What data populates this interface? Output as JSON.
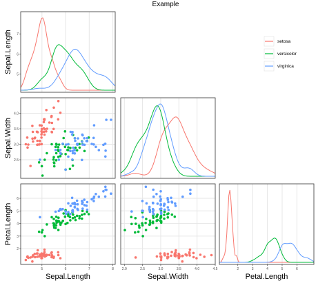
{
  "title": "Example",
  "colors": {
    "setosa": "#F8766D",
    "versicolor": "#00BA38",
    "virginica": "#619CFF",
    "panel_border": "#333333",
    "grid": "#e6e6e6"
  },
  "legend": {
    "placement": "right",
    "entries": [
      "setosa",
      "versicolor",
      "virginica"
    ]
  },
  "column_labels": [
    "Sepal.Length",
    "Sepal.Width",
    "Petal.Length"
  ],
  "row_labels": [
    "Sepal.Length",
    "Sepal.Width",
    "Petal.Length"
  ],
  "chart_data": {
    "type": "scatter",
    "title": "Example",
    "grid": true,
    "variables": [
      "Sepal.Length",
      "Sepal.Width",
      "Petal.Length"
    ],
    "axes": {
      "Sepal.Length": {
        "ylim": [
          4.3,
          7.9
        ],
        "ticks": [
          "5",
          "6",
          "7",
          "8"
        ]
      },
      "Sepal.Width": {
        "ylim": [
          2.0,
          4.4
        ],
        "ticks": [
          "2.5",
          "3.0",
          "3.5",
          "4.0"
        ],
        "xticks": [
          "2.0",
          "2.5",
          "3.0",
          "3.5",
          "4.0",
          "4.5"
        ]
      },
      "Petal.Length": {
        "ylim": [
          1.0,
          6.9
        ],
        "ticks": [
          "2",
          "3",
          "4",
          "5",
          "6"
        ]
      }
    },
    "panels": [
      {
        "row": 0,
        "col": 0,
        "type": "density",
        "x": "Sepal.Length",
        "y_tick_labels": [
          "5",
          "6",
          "7"
        ]
      },
      {
        "row": 1,
        "col": 0,
        "type": "scatter",
        "x": "Sepal.Length",
        "y": "Sepal.Width"
      },
      {
        "row": 1,
        "col": 1,
        "type": "density",
        "x": "Sepal.Width"
      },
      {
        "row": 2,
        "col": 0,
        "type": "scatter",
        "x": "Sepal.Length",
        "y": "Petal.Length"
      },
      {
        "row": 2,
        "col": 1,
        "type": "scatter",
        "x": "Sepal.Width",
        "y": "Petal.Length"
      },
      {
        "row": 2,
        "col": 2,
        "type": "density",
        "x": "Petal.Length"
      }
    ],
    "series": [
      {
        "name": "setosa",
        "sepal_length": [
          5.1,
          4.9,
          4.7,
          4.6,
          5.0,
          5.4,
          4.6,
          5.0,
          4.4,
          4.9,
          5.4,
          4.8,
          4.8,
          4.3,
          5.8,
          5.7,
          5.4,
          5.1,
          5.7,
          5.1,
          5.4,
          5.1,
          4.6,
          5.1,
          4.8,
          5.0,
          5.0,
          5.2,
          5.2,
          4.7,
          4.8,
          5.4,
          5.2,
          5.5,
          4.9,
          5.0,
          5.5,
          4.9,
          4.4,
          5.1,
          5.0,
          4.5,
          4.4,
          5.0,
          5.1,
          4.8,
          5.1,
          4.6,
          5.3,
          5.0
        ],
        "sepal_width": [
          3.5,
          3.0,
          3.2,
          3.1,
          3.6,
          3.9,
          3.4,
          3.4,
          2.9,
          3.1,
          3.7,
          3.4,
          3.0,
          3.0,
          4.0,
          4.4,
          3.9,
          3.5,
          3.8,
          3.8,
          3.4,
          3.7,
          3.6,
          3.3,
          3.4,
          3.0,
          3.4,
          3.5,
          3.4,
          3.2,
          3.1,
          3.4,
          4.1,
          4.2,
          3.1,
          3.2,
          3.5,
          3.6,
          3.0,
          3.4,
          3.5,
          2.3,
          3.2,
          3.5,
          3.8,
          3.0,
          3.8,
          3.2,
          3.7,
          3.3
        ],
        "petal_length": [
          1.4,
          1.4,
          1.3,
          1.5,
          1.4,
          1.7,
          1.4,
          1.5,
          1.4,
          1.5,
          1.5,
          1.6,
          1.4,
          1.1,
          1.2,
          1.5,
          1.3,
          1.4,
          1.7,
          1.5,
          1.7,
          1.5,
          1.0,
          1.7,
          1.9,
          1.6,
          1.6,
          1.5,
          1.4,
          1.6,
          1.6,
          1.5,
          1.5,
          1.4,
          1.5,
          1.2,
          1.3,
          1.4,
          1.3,
          1.5,
          1.3,
          1.3,
          1.3,
          1.6,
          1.9,
          1.4,
          1.6,
          1.4,
          1.5,
          1.4
        ]
      },
      {
        "name": "versicolor",
        "sepal_length": [
          7.0,
          6.4,
          6.9,
          5.5,
          6.5,
          5.7,
          6.3,
          4.9,
          6.6,
          5.2,
          5.0,
          5.9,
          6.0,
          6.1,
          5.6,
          6.7,
          5.6,
          5.8,
          6.2,
          5.6,
          5.9,
          6.1,
          6.3,
          6.1,
          6.4,
          6.6,
          6.8,
          6.7,
          6.0,
          5.7,
          5.5,
          5.5,
          5.8,
          6.0,
          5.4,
          6.0,
          6.7,
          6.3,
          5.6,
          5.5,
          5.5,
          6.1,
          5.8,
          5.0,
          5.6,
          5.7,
          5.7,
          6.2,
          5.1,
          5.7
        ],
        "sepal_width": [
          3.2,
          3.2,
          3.1,
          2.3,
          2.8,
          2.8,
          3.3,
          2.4,
          2.9,
          2.7,
          2.0,
          3.0,
          2.2,
          2.9,
          2.9,
          3.1,
          3.0,
          2.7,
          2.2,
          2.5,
          3.2,
          2.8,
          2.5,
          2.8,
          2.9,
          3.0,
          2.8,
          3.0,
          2.9,
          2.6,
          2.4,
          2.4,
          2.7,
          2.7,
          3.0,
          3.4,
          3.1,
          2.3,
          3.0,
          2.5,
          2.6,
          3.0,
          2.6,
          2.3,
          2.7,
          3.0,
          2.9,
          2.9,
          2.5,
          2.8
        ],
        "petal_length": [
          4.7,
          4.5,
          4.9,
          4.0,
          4.6,
          4.5,
          4.7,
          3.3,
          4.6,
          3.9,
          3.5,
          4.2,
          4.0,
          4.7,
          3.6,
          4.4,
          4.5,
          4.1,
          4.5,
          3.9,
          4.8,
          4.0,
          4.9,
          4.7,
          4.3,
          4.4,
          4.8,
          5.0,
          4.5,
          3.5,
          3.8,
          3.7,
          3.9,
          5.1,
          4.5,
          4.5,
          4.7,
          4.4,
          4.1,
          4.0,
          4.4,
          4.6,
          4.0,
          3.3,
          4.2,
          4.2,
          4.2,
          4.3,
          3.0,
          4.1
        ]
      },
      {
        "name": "virginica",
        "sepal_length": [
          6.3,
          5.8,
          7.1,
          6.3,
          6.5,
          7.6,
          4.9,
          7.3,
          6.7,
          7.2,
          6.5,
          6.4,
          6.8,
          5.7,
          5.8,
          6.4,
          6.5,
          7.7,
          7.7,
          6.0,
          6.9,
          5.6,
          7.7,
          6.3,
          6.7,
          7.2,
          6.2,
          6.1,
          6.4,
          7.2,
          7.4,
          7.9,
          6.4,
          6.3,
          6.1,
          7.7,
          6.3,
          6.4,
          6.0,
          6.9,
          6.7,
          6.9,
          5.8,
          6.8,
          6.7,
          6.7,
          6.3,
          6.5,
          6.2,
          5.9
        ],
        "sepal_width": [
          3.3,
          2.7,
          3.0,
          2.9,
          3.0,
          3.0,
          2.5,
          2.9,
          2.5,
          3.6,
          3.2,
          2.7,
          3.0,
          2.5,
          2.8,
          3.2,
          3.0,
          3.8,
          2.6,
          2.2,
          3.2,
          2.8,
          2.8,
          2.7,
          3.3,
          3.2,
          2.8,
          3.0,
          2.8,
          3.0,
          2.8,
          3.8,
          2.8,
          2.8,
          2.6,
          3.0,
          3.4,
          3.1,
          3.0,
          3.1,
          3.1,
          3.1,
          2.7,
          3.2,
          3.3,
          3.0,
          2.5,
          3.0,
          3.4,
          3.0
        ],
        "petal_length": [
          6.0,
          5.1,
          5.9,
          5.6,
          5.8,
          6.6,
          4.5,
          6.3,
          5.8,
          6.1,
          5.1,
          5.3,
          5.5,
          5.0,
          5.1,
          5.3,
          5.5,
          6.7,
          6.9,
          5.0,
          5.7,
          4.9,
          6.7,
          4.9,
          5.7,
          6.0,
          4.8,
          4.9,
          5.6,
          5.8,
          6.1,
          6.4,
          5.6,
          5.1,
          5.6,
          6.1,
          5.6,
          5.5,
          4.8,
          5.4,
          5.6,
          5.1,
          5.1,
          5.9,
          5.7,
          5.2,
          5.0,
          5.2,
          5.4,
          5.1
        ]
      }
    ]
  }
}
